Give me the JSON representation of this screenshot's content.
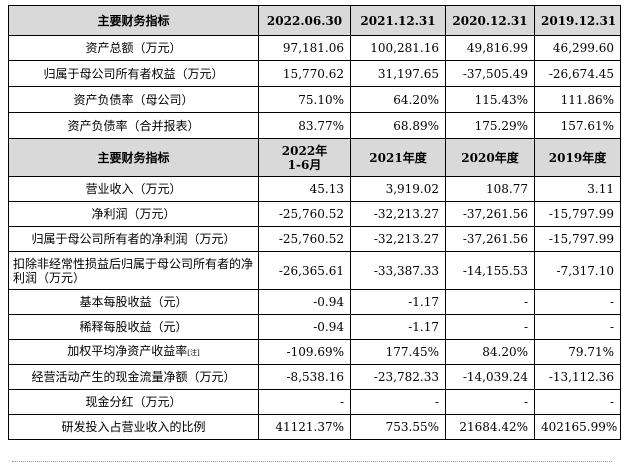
{
  "table": {
    "header1": [
      "主要财务指标",
      "2022.06.30",
      "2021.12.31",
      "2020.12.31",
      "2019.12.31"
    ],
    "rows1": [
      {
        "label": "资产总额（万元）",
        "v": [
          "97,181.06",
          "100,281.16",
          "49,816.99",
          "46,299.60"
        ]
      },
      {
        "label": "归属于母公司所有者权益（万元）",
        "v": [
          "15,770.62",
          "31,197.65",
          "-37,505.49",
          "-26,674.45"
        ]
      },
      {
        "label": "资产负债率（母公司）",
        "v": [
          "75.10%",
          "64.20%",
          "115.43%",
          "111.86%"
        ]
      },
      {
        "label": "资产负债率（合并报表）",
        "v": [
          "83.77%",
          "68.89%",
          "175.29%",
          "157.61%"
        ]
      }
    ],
    "header2": {
      "title": "主要财务指标",
      "c1_line1": "2022年",
      "c1_line2": "1-6月",
      "c2": "2021年度",
      "c3": "2020年度",
      "c4": "2019年度"
    },
    "rows2": [
      {
        "label": "营业收入（万元）",
        "v": [
          "45.13",
          "3,919.02",
          "108.77",
          "3.11"
        ]
      },
      {
        "label": "净利润（万元）",
        "v": [
          "-25,760.52",
          "-32,213.27",
          "-37,261.56",
          "-15,797.99"
        ]
      },
      {
        "label": "归属于母公司所有者的净利润（万元）",
        "v": [
          "-25,760.52",
          "-32,213.27",
          "-37,261.56",
          "-15,797.99"
        ]
      },
      {
        "label": "扣除非经常性损益后归属于母公司所有者的净利润（万元）",
        "v": [
          "-26,365.61",
          "-33,387.33",
          "-14,155.53",
          "-7,317.10"
        ]
      },
      {
        "label": "基本每股收益（元）",
        "v": [
          "-0.94",
          "-1.17",
          "-",
          "-"
        ]
      },
      {
        "label": "稀释每股收益（元）",
        "v": [
          "-0.94",
          "-1.17",
          "-",
          "-"
        ]
      },
      {
        "label": "加权平均净资产收益率",
        "note": "[注]",
        "v": [
          "-109.69%",
          "177.45%",
          "84.20%",
          "79.71%"
        ]
      },
      {
        "label": "经营活动产生的现金流量净额（万元）",
        "v": [
          "-8,538.16",
          "-23,782.33",
          "-14,039.24",
          "-13,112.36"
        ]
      },
      {
        "label": "现金分红（万元）",
        "v": [
          "-",
          "-",
          "-",
          "-"
        ]
      },
      {
        "label": "研发投入占营业收入的比例",
        "v": [
          "41121.37%",
          "753.55%",
          "21684.42%",
          "402165.99%"
        ]
      }
    ]
  }
}
